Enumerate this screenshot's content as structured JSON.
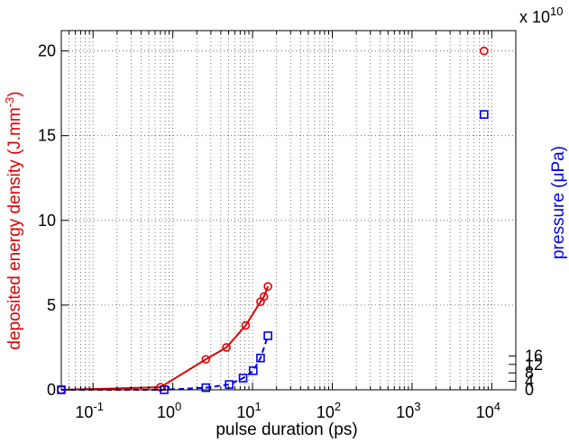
{
  "chart_data": {
    "type": "scatter",
    "xlabel": "pulse duration (ps)",
    "ylabel_left": "deposited energy density (J.mm",
    "ylabel_left_sup": "-3",
    "ylabel_left_close": ")",
    "ylabel_right": "pressure (",
    "ylabel_right_unit": "μPa",
    "ylabel_right_close": ")",
    "right_exponent_base": "x 10",
    "right_exponent_power": "10",
    "x_scale": "log",
    "xlim": [
      0.04,
      20000
    ],
    "ylim_left": [
      0,
      21.2
    ],
    "ylim_right": [
      0,
      169600000000
    ],
    "grid": true,
    "x_ticks": [
      {
        "base": "10",
        "exp": "-1",
        "value": 0.1
      },
      {
        "base": "10",
        "exp": "0",
        "value": 1
      },
      {
        "base": "10",
        "exp": "1",
        "value": 10
      },
      {
        "base": "10",
        "exp": "2",
        "value": 100
      },
      {
        "base": "10",
        "exp": "3",
        "value": 1000
      },
      {
        "base": "10",
        "exp": "4",
        "value": 10000
      }
    ],
    "y_ticks_left": [
      {
        "label": "0",
        "value": 0
      },
      {
        "label": "5",
        "value": 5
      },
      {
        "label": "10",
        "value": 10
      },
      {
        "label": "15",
        "value": 15
      },
      {
        "label": "20",
        "value": 20
      }
    ],
    "y_ticks_right": [
      {
        "label": "0",
        "value": 0
      },
      {
        "label": "4",
        "value": 4
      },
      {
        "label": "8",
        "value": 8
      },
      {
        "label": "12",
        "value": 12
      },
      {
        "label": "16",
        "value": 16
      }
    ],
    "series": [
      {
        "axis": "left",
        "color": "#dd0000",
        "marker": "circle",
        "line": "solid",
        "points": [
          [
            0.04,
            0.0
          ],
          [
            0.7,
            0.15
          ],
          [
            2.6,
            1.8
          ],
          [
            4.7,
            2.5
          ],
          [
            8.2,
            3.8
          ],
          [
            12.6,
            5.2
          ],
          [
            13.9,
            5.5
          ],
          [
            15.6,
            6.1
          ],
          [
            8000,
            20.0
          ]
        ],
        "line_points": [
          [
            0.04,
            0.0
          ],
          [
            0.7,
            0.15
          ],
          [
            2.6,
            1.8
          ],
          [
            4.7,
            2.5
          ],
          [
            8.2,
            3.8
          ],
          [
            12.6,
            5.2
          ],
          [
            13.9,
            5.5
          ],
          [
            15.6,
            6.1
          ]
        ]
      },
      {
        "axis": "right",
        "color": "#0000ee",
        "marker": "square",
        "line": "dashed",
        "points": [
          [
            0.04,
            0.0
          ],
          [
            0.78,
            0.0
          ],
          [
            2.6,
            1.0
          ],
          [
            5.1,
            2.5
          ],
          [
            7.6,
            5.5
          ],
          [
            10.2,
            9.0
          ],
          [
            12.6,
            15.0
          ],
          [
            15.6,
            25.5
          ],
          [
            8000,
            130.0
          ]
        ],
        "line_points": [
          [
            0.04,
            0.0
          ],
          [
            0.78,
            0.0
          ],
          [
            2.6,
            1.0
          ],
          [
            5.1,
            2.5
          ],
          [
            7.6,
            5.5
          ],
          [
            10.2,
            9.0
          ],
          [
            12.6,
            15.0
          ],
          [
            15.6,
            25.5
          ]
        ],
        "value_unit_note": "values in units of 1e9"
      }
    ]
  },
  "colors": {
    "left_axis_label": "#dd0000",
    "right_axis_label": "#0000ee"
  }
}
